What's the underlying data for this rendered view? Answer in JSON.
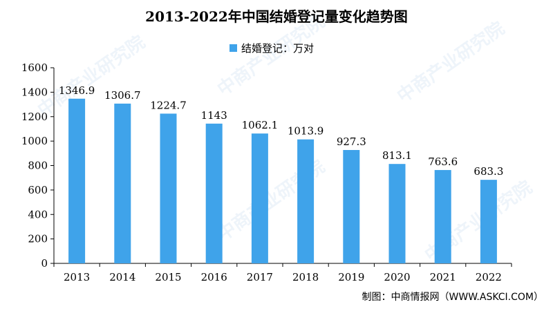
{
  "title": "2013-2022年中国结婚登记量变化趋势图",
  "legend_label": "结婚登记：万对",
  "source": "制图：中商情报网（WWW.ASKCI.COM）",
  "watermark": "中商产业研究院",
  "colors": {
    "bar": "#3fa3ea",
    "axis": "#000000"
  },
  "chart_data": {
    "type": "bar",
    "title": "2013-2022年中国结婚登记量变化趋势图",
    "categories": [
      "2013",
      "2014",
      "2015",
      "2016",
      "2017",
      "2018",
      "2019",
      "2020",
      "2021",
      "2022"
    ],
    "series": [
      {
        "name": "结婚登记：万对",
        "values": [
          1346.9,
          1306.7,
          1224.7,
          1143,
          1062.1,
          1013.9,
          927.3,
          813.1,
          763.6,
          683.3
        ],
        "labels": [
          "1346.9",
          "1306.7",
          "1224.7",
          "1143",
          "1062.1",
          "1013.9",
          "927.3",
          "813.1",
          "763.6",
          "683.3"
        ]
      }
    ],
    "yticks": [
      "0",
      "200",
      "400",
      "600",
      "800",
      "1000",
      "1200",
      "1400",
      "1600"
    ],
    "ylim": [
      0,
      1600
    ],
    "grid": false,
    "legend_position": "top-center"
  }
}
